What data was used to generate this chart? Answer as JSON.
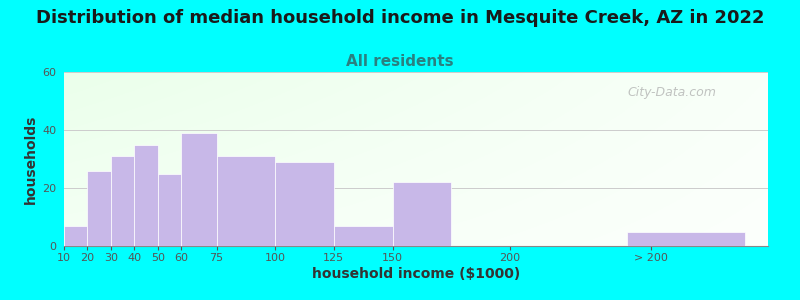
{
  "title": "Distribution of median household income in Mesquite Creek, AZ in 2022",
  "subtitle": "All residents",
  "xlabel": "household income ($1000)",
  "ylabel": "households",
  "bar_heights": [
    7,
    26,
    31,
    35,
    25,
    39,
    31,
    29,
    7,
    22,
    0,
    5
  ],
  "bar_widths": [
    10,
    10,
    10,
    10,
    10,
    15,
    25,
    25,
    25,
    25,
    50,
    50
  ],
  "bar_lefts": [
    10,
    20,
    30,
    40,
    50,
    60,
    75,
    100,
    125,
    150,
    200,
    250
  ],
  "bar_color": "#c8b8e8",
  "bar_edgecolor": "#ffffff",
  "ylim": [
    0,
    60
  ],
  "yticks": [
    0,
    20,
    40,
    60
  ],
  "xlim": [
    10,
    310
  ],
  "tick_positions": [
    10,
    20,
    30,
    40,
    50,
    60,
    75,
    100,
    125,
    150,
    200,
    260
  ],
  "tick_labels": [
    "10",
    "20",
    "30",
    "40",
    "50",
    "60",
    "75",
    "100",
    "125",
    "150",
    "200",
    "> 200"
  ],
  "background_color": "#00ffff",
  "title_color": "#1a1a1a",
  "title_fontsize": 13,
  "subtitle_fontsize": 11,
  "subtitle_color": "#2a8080",
  "axis_label_fontsize": 10,
  "watermark_text": "City-Data.com",
  "watermark_color": "#aaaaaa",
  "tick_label_color": "#555555"
}
